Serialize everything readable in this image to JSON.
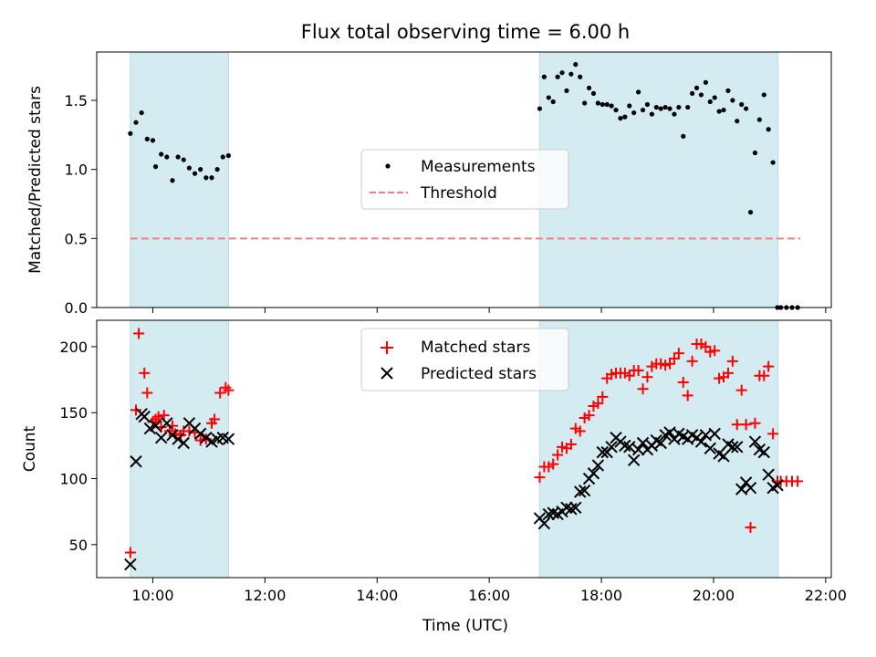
{
  "chart_data": [
    {
      "type": "scatter",
      "title": "Flux total observing time = 6.00 h",
      "xlabel": "",
      "ylabel": "Matched/Predicted stars",
      "xlim": [
        9.0,
        22.1
      ],
      "ylim": [
        0.0,
        1.85
      ],
      "yticks": [
        0.0,
        0.5,
        1.0,
        1.5
      ],
      "ytick_labels": [
        "0.0",
        "0.5",
        "1.0",
        "1.5"
      ],
      "shaded_intervals": [
        [
          9.6,
          11.35
        ],
        [
          16.9,
          21.15
        ]
      ],
      "shade_color": "#d4ebf1",
      "legend_position": "center",
      "series": [
        {
          "name": "Measurements",
          "marker": "dot",
          "color": "#000000",
          "x": [
            9.6,
            9.7,
            9.8,
            9.9,
            10.0,
            10.05,
            10.15,
            10.25,
            10.35,
            10.45,
            10.55,
            10.65,
            10.75,
            10.85,
            10.95,
            11.05,
            11.15,
            11.25,
            11.35,
            16.9,
            16.98,
            17.06,
            17.14,
            17.22,
            17.3,
            17.38,
            17.46,
            17.54,
            17.62,
            17.7,
            17.78,
            17.86,
            17.94,
            18.02,
            18.1,
            18.18,
            18.26,
            18.34,
            18.42,
            18.5,
            18.58,
            18.66,
            18.74,
            18.82,
            18.9,
            18.98,
            19.06,
            19.14,
            19.22,
            19.3,
            19.38,
            19.46,
            19.54,
            19.62,
            19.7,
            19.78,
            19.86,
            19.94,
            20.02,
            20.1,
            20.18,
            20.26,
            20.34,
            20.42,
            20.5,
            20.58,
            20.66,
            20.74,
            20.82,
            20.9,
            20.98,
            21.06,
            21.14,
            21.2,
            21.3,
            21.4,
            21.5
          ],
          "y": [
            1.26,
            1.34,
            1.41,
            1.22,
            1.21,
            1.02,
            1.11,
            1.09,
            0.92,
            1.09,
            1.07,
            1.01,
            0.97,
            1.0,
            0.94,
            0.94,
            1.0,
            1.09,
            1.1,
            1.44,
            1.67,
            1.52,
            1.49,
            1.67,
            1.7,
            1.57,
            1.69,
            1.76,
            1.67,
            1.48,
            1.59,
            1.55,
            1.48,
            1.47,
            1.47,
            1.46,
            1.43,
            1.37,
            1.38,
            1.46,
            1.41,
            1.56,
            1.43,
            1.47,
            1.4,
            1.45,
            1.44,
            1.45,
            1.44,
            1.4,
            1.45,
            1.24,
            1.45,
            1.55,
            1.59,
            1.54,
            1.63,
            1.49,
            1.52,
            1.42,
            1.43,
            1.57,
            1.5,
            1.35,
            1.47,
            1.44,
            0.69,
            1.12,
            1.36,
            1.54,
            1.29,
            1.05,
            0.0,
            0.0,
            0.0,
            0.0,
            0.0
          ]
        },
        {
          "name": "Threshold",
          "type": "line",
          "style": "dashed",
          "color": "#f08080",
          "x": [
            9.6,
            21.55
          ],
          "y": [
            0.5,
            0.5
          ]
        }
      ]
    },
    {
      "type": "scatter",
      "title": "",
      "xlabel": "Time (UTC)",
      "ylabel": "Count",
      "xlim": [
        9.0,
        22.1
      ],
      "ylim": [
        25,
        220
      ],
      "yticks": [
        50,
        100,
        150,
        200
      ],
      "ytick_labels": [
        "50",
        "100",
        "150",
        "200"
      ],
      "xticks": [
        10,
        12,
        14,
        16,
        18,
        20,
        22
      ],
      "xtick_labels": [
        "10:00",
        "12:00",
        "14:00",
        "16:00",
        "18:00",
        "20:00",
        "22:00"
      ],
      "shaded_intervals": [
        [
          9.6,
          11.35
        ],
        [
          16.9,
          21.15
        ]
      ],
      "shade_color": "#d4ebf1",
      "legend_position": "upper center",
      "series": [
        {
          "name": "Matched stars",
          "marker": "plus",
          "color": "#ff0000",
          "x": [
            9.6,
            9.7,
            9.75,
            9.85,
            9.9,
            10.0,
            10.05,
            10.1,
            10.15,
            10.2,
            10.3,
            10.35,
            10.4,
            10.5,
            10.55,
            10.65,
            10.75,
            10.85,
            10.95,
            11.05,
            11.1,
            11.2,
            11.3,
            11.35,
            16.9,
            16.98,
            17.06,
            17.14,
            17.22,
            17.3,
            17.38,
            17.46,
            17.54,
            17.62,
            17.7,
            17.78,
            17.86,
            17.94,
            18.02,
            18.1,
            18.18,
            18.26,
            18.34,
            18.42,
            18.5,
            18.58,
            18.66,
            18.74,
            18.82,
            18.9,
            18.98,
            19.06,
            19.14,
            19.22,
            19.3,
            19.38,
            19.46,
            19.54,
            19.62,
            19.7,
            19.78,
            19.86,
            19.94,
            20.02,
            20.1,
            20.18,
            20.26,
            20.34,
            20.42,
            20.5,
            20.58,
            20.66,
            20.74,
            20.82,
            20.9,
            20.98,
            21.06,
            21.14,
            21.2,
            21.3,
            21.4,
            21.5
          ],
          "y": [
            44,
            152,
            210,
            180,
            165,
            143,
            145,
            147,
            139,
            148,
            136,
            140,
            134,
            133,
            136,
            136,
            135,
            129,
            130,
            142,
            145,
            165,
            169,
            167,
            101,
            109,
            109,
            111,
            118,
            124,
            123,
            126,
            138,
            136,
            146,
            148,
            155,
            157,
            162,
            176,
            179,
            180,
            180,
            180,
            178,
            182,
            182,
            168,
            177,
            185,
            187,
            187,
            186,
            187,
            191,
            195,
            173,
            163,
            189,
            202,
            202,
            200,
            196,
            197,
            176,
            177,
            180,
            189,
            141,
            167,
            141,
            63,
            142,
            178,
            178,
            185,
            134,
            98,
            98,
            98,
            98,
            98
          ]
        },
        {
          "name": "Predicted stars",
          "marker": "x",
          "color": "#000000",
          "x": [
            9.6,
            9.7,
            9.8,
            9.85,
            9.95,
            10.05,
            10.15,
            10.25,
            10.35,
            10.45,
            10.55,
            10.65,
            10.75,
            10.85,
            10.95,
            11.05,
            11.15,
            11.25,
            11.35,
            16.9,
            16.98,
            17.06,
            17.14,
            17.22,
            17.3,
            17.38,
            17.46,
            17.54,
            17.62,
            17.7,
            17.78,
            17.86,
            17.94,
            18.02,
            18.1,
            18.18,
            18.26,
            18.34,
            18.42,
            18.5,
            18.58,
            18.66,
            18.74,
            18.82,
            18.9,
            18.98,
            19.06,
            19.14,
            19.22,
            19.3,
            19.38,
            19.46,
            19.54,
            19.62,
            19.7,
            19.78,
            19.86,
            19.94,
            20.02,
            20.1,
            20.18,
            20.26,
            20.34,
            20.42,
            20.5,
            20.58,
            20.66,
            20.74,
            20.82,
            20.9,
            20.98,
            21.06,
            21.14
          ],
          "y": [
            35,
            113,
            149,
            147,
            138,
            140,
            131,
            142,
            133,
            130,
            127,
            142,
            138,
            134,
            131,
            128,
            130,
            131,
            130,
            70,
            66,
            73,
            74,
            73,
            75,
            78,
            77,
            78,
            90,
            91,
            100,
            104,
            110,
            120,
            120,
            124,
            131,
            128,
            125,
            124,
            114,
            122,
            127,
            122,
            125,
            129,
            127,
            133,
            135,
            130,
            134,
            132,
            130,
            133,
            131,
            128,
            133,
            123,
            134,
            119,
            117,
            126,
            124,
            124,
            92,
            97,
            93,
            128,
            122,
            120,
            103,
            93,
            95
          ]
        }
      ]
    }
  ]
}
